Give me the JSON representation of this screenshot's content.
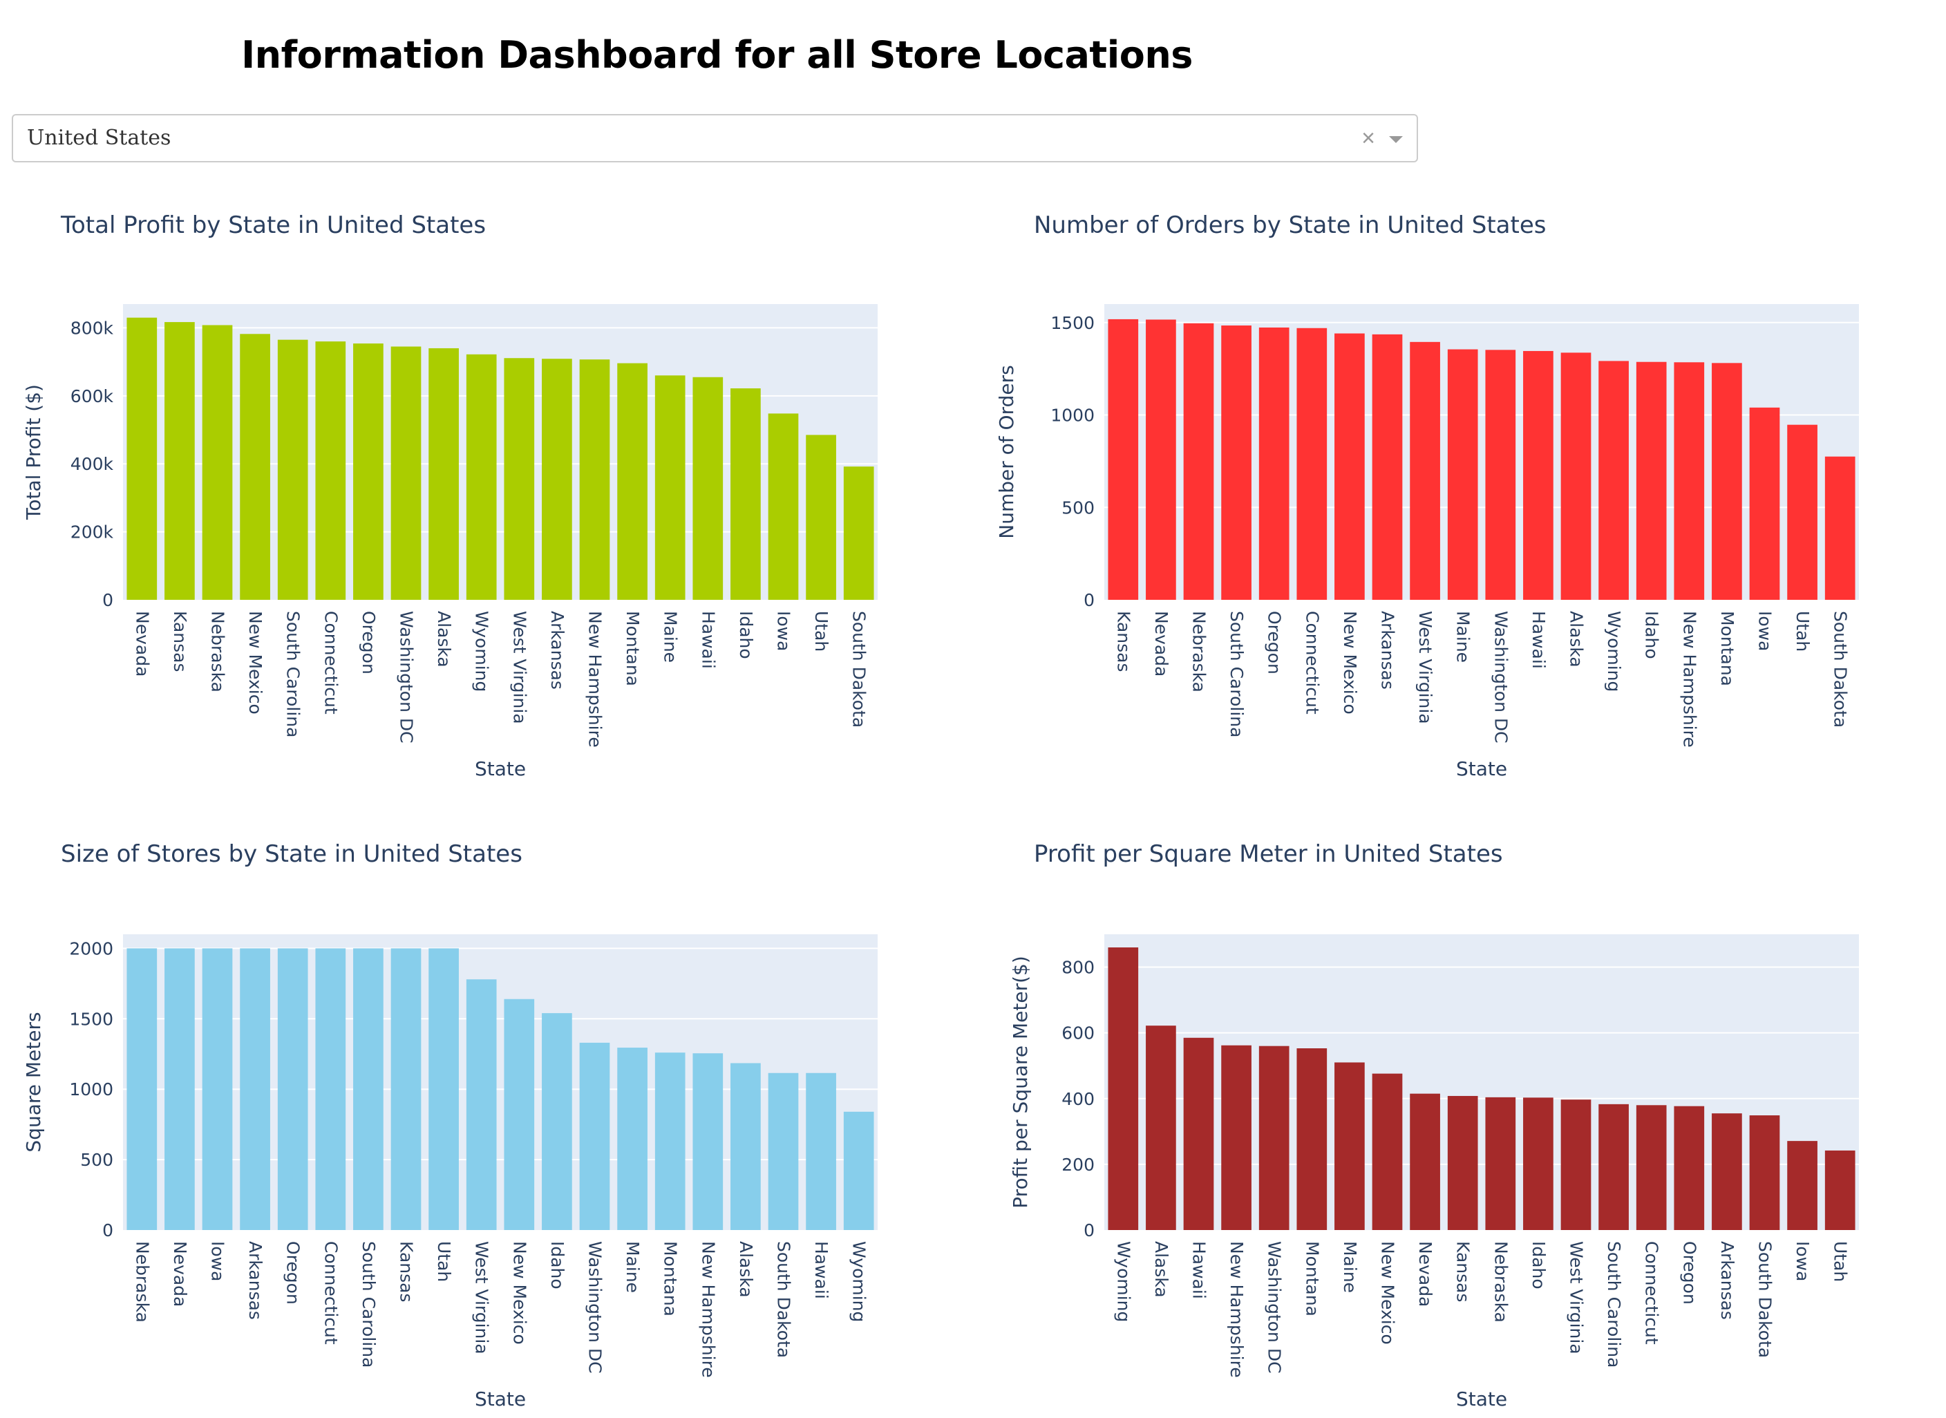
{
  "header": {
    "title": "Information Dashboard for all Store Locations"
  },
  "dropdown": {
    "selected": "United States",
    "clear_glyph": "×",
    "arrow_icon": "chevron-down-icon"
  },
  "colors": {
    "profit": "#aacd00",
    "orders": "#ff3333",
    "size": "#87ceeb",
    "ppsm": "#a52a2a",
    "plot_bg": "#e5ecf6"
  },
  "chart_data": [
    {
      "id": "profit",
      "type": "bar",
      "title": "Total Profit by State in United States",
      "xlabel": "State",
      "ylabel": "Total Profit ($)",
      "ylim": [
        0,
        870000
      ],
      "yticks": [
        0,
        200000,
        400000,
        600000,
        800000
      ],
      "ytick_labels": [
        "0",
        "200k",
        "400k",
        "600k",
        "800k"
      ],
      "color": "#aacd00",
      "categories": [
        "Nevada",
        "Kansas",
        "Nebraska",
        "New Mexico",
        "South Carolina",
        "Connecticut",
        "Oregon",
        "Washington DC",
        "Alaska",
        "Wyoming",
        "West Virginia",
        "Arkansas",
        "New Hampshire",
        "Montana",
        "Maine",
        "Hawaii",
        "Idaho",
        "Iowa",
        "Utah",
        "South Dakota"
      ],
      "values": [
        830000,
        817000,
        808000,
        782000,
        765000,
        760000,
        754000,
        745000,
        740000,
        722000,
        711000,
        709000,
        707000,
        696000,
        660000,
        655000,
        622000,
        548000,
        485000,
        392000
      ]
    },
    {
      "id": "orders",
      "type": "bar",
      "title": "Number of Orders by State in United States",
      "xlabel": "State",
      "ylabel": "Number of Orders",
      "ylim": [
        0,
        1600
      ],
      "yticks": [
        0,
        500,
        1000,
        1500
      ],
      "ytick_labels": [
        "0",
        "500",
        "1000",
        "1500"
      ],
      "color": "#ff3333",
      "categories": [
        "Kansas",
        "Nevada",
        "Nebraska",
        "South Carolina",
        "Oregon",
        "Connecticut",
        "New Mexico",
        "Arkansas",
        "West Virginia",
        "Maine",
        "Washington DC",
        "Hawaii",
        "Alaska",
        "Wyoming",
        "Idaho",
        "New Hampshire",
        "Montana",
        "Iowa",
        "Utah",
        "South Dakota"
      ],
      "values": [
        1518,
        1516,
        1496,
        1484,
        1473,
        1470,
        1441,
        1436,
        1395,
        1355,
        1352,
        1346,
        1337,
        1292,
        1287,
        1285,
        1281,
        1040,
        947,
        775
      ]
    },
    {
      "id": "size",
      "type": "bar",
      "title": "Size of Stores by State in United States",
      "xlabel": "State",
      "ylabel": "Square Meters",
      "ylim": [
        0,
        2100
      ],
      "yticks": [
        0,
        500,
        1000,
        1500,
        2000
      ],
      "ytick_labels": [
        "0",
        "500",
        "1000",
        "1500",
        "2000"
      ],
      "color": "#87ceeb",
      "categories": [
        "Nebraska",
        "Nevada",
        "Iowa",
        "Arkansas",
        "Oregon",
        "Connecticut",
        "South Carolina",
        "Kansas",
        "Utah",
        "West Virginia",
        "New Mexico",
        "Idaho",
        "Washington DC",
        "Maine",
        "Montana",
        "New Hampshire",
        "Alaska",
        "South Dakota",
        "Hawaii",
        "Wyoming"
      ],
      "values": [
        2000,
        2000,
        2000,
        2000,
        2000,
        2000,
        2000,
        2000,
        2000,
        1780,
        1640,
        1540,
        1330,
        1295,
        1260,
        1255,
        1185,
        1115,
        1115,
        840
      ]
    },
    {
      "id": "ppsm",
      "type": "bar",
      "title": "Profit per Square Meter in United States",
      "xlabel": "State",
      "ylabel": "Profit per Square Meter($)",
      "ylim": [
        0,
        900
      ],
      "yticks": [
        0,
        200,
        400,
        600,
        800
      ],
      "ytick_labels": [
        "0",
        "200",
        "400",
        "600",
        "800"
      ],
      "color": "#a52a2a",
      "categories": [
        "Wyoming",
        "Alaska",
        "Hawaii",
        "New Hampshire",
        "Washington DC",
        "Montana",
        "Maine",
        "New Mexico",
        "Nevada",
        "Kansas",
        "Nebraska",
        "Idaho",
        "West Virginia",
        "South Carolina",
        "Connecticut",
        "Oregon",
        "Arkansas",
        "South Dakota",
        "Iowa",
        "Utah"
      ],
      "values": [
        860,
        622,
        585,
        562,
        560,
        553,
        510,
        476,
        415,
        408,
        404,
        403,
        397,
        383,
        380,
        377,
        355,
        349,
        271,
        242
      ]
    }
  ]
}
